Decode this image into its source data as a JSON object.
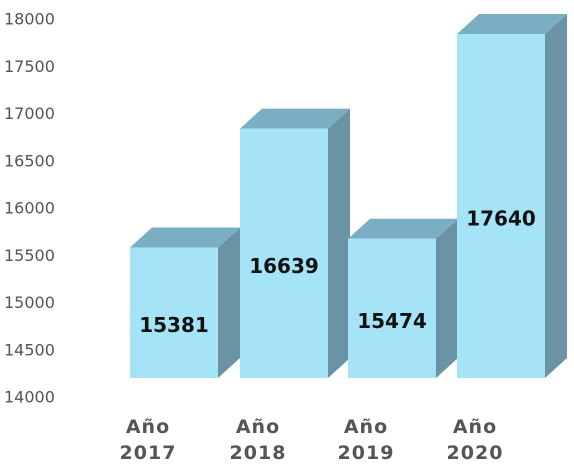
{
  "chart_data": {
    "type": "bar3d",
    "categories": [
      "Año 2017",
      "Año 2018",
      "Año 2019",
      "Año 2020"
    ],
    "values": [
      15381,
      16639,
      15474,
      17640
    ],
    "color": "#a5e4f7",
    "ylim": [
      14000,
      18000
    ],
    "yticks": [
      14000,
      14500,
      15000,
      15500,
      16000,
      16500,
      17000,
      17500,
      18000
    ],
    "grid": false
  }
}
